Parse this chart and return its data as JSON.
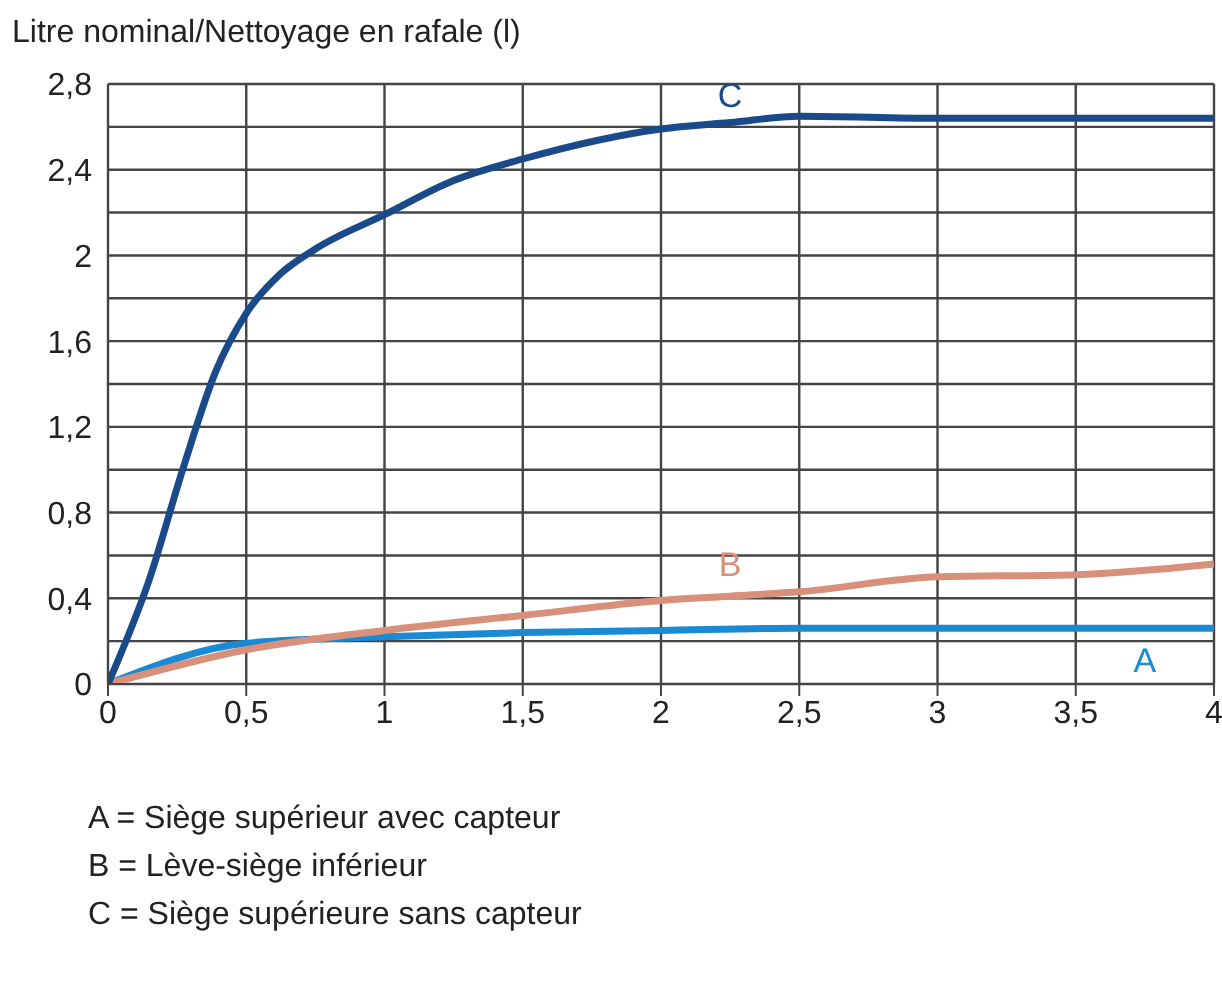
{
  "chart_data": {
    "type": "line",
    "ylabel": "Litre nominal/Nettoyage en rafale (l)",
    "xlim": [
      0,
      4
    ],
    "xticks": [
      0,
      {
        "value": 0.5,
        "label": "0,5"
      },
      1,
      {
        "value": 1.5,
        "label": "1,5"
      },
      2,
      {
        "value": 2.5,
        "label": "2,5"
      },
      3,
      {
        "value": 3.5,
        "label": "3,5"
      },
      4
    ],
    "ylim": [
      0,
      2.8
    ],
    "yticks": [
      0,
      {
        "value": 0.2,
        "label": null
      },
      {
        "value": 0.4,
        "label": "0,4"
      },
      {
        "value": 0.6,
        "label": null
      },
      {
        "value": 0.8,
        "label": "0,8"
      },
      {
        "value": 1,
        "label": null
      },
      {
        "value": 1.2,
        "label": "1,2"
      },
      {
        "value": 1.4,
        "label": null
      },
      {
        "value": 1.6,
        "label": "1,6"
      },
      {
        "value": 1.8,
        "label": null
      },
      2,
      {
        "value": 2.2,
        "label": null
      },
      {
        "value": 2.4,
        "label": "2,4"
      },
      {
        "value": 2.6,
        "label": null
      },
      {
        "value": 2.8,
        "label": "2,8"
      }
    ],
    "grid": true,
    "marker": "none",
    "line_style": "solid",
    "series": [
      {
        "name": "A",
        "color": "#1a8ad4",
        "x": [
          0,
          0.5,
          1,
          1.5,
          2,
          2.5,
          3,
          3.5,
          3.75,
          4
        ],
        "values": [
          0,
          0.19,
          0.22,
          0.24,
          0.25,
          0.26,
          0.26,
          0.26,
          0.26,
          0.26
        ]
      },
      {
        "name": "B",
        "color": "#d9907a",
        "x": [
          0,
          0.5,
          1,
          1.5,
          2,
          2.25,
          2.5,
          3,
          3.5,
          4
        ],
        "values": [
          0,
          0.16,
          0.25,
          0.32,
          0.39,
          0.41,
          0.43,
          0.5,
          0.51,
          0.56
        ]
      },
      {
        "name": "C",
        "color": "#1a4a8a",
        "x": [
          0,
          0.15,
          0.27,
          0.39,
          0.5,
          0.62,
          0.75,
          1,
          1.25,
          1.5,
          2,
          2.25,
          2.5,
          3,
          3.5,
          4
        ],
        "values": [
          0,
          0.49,
          1.0,
          1.46,
          1.73,
          1.91,
          2.03,
          2.19,
          2.35,
          2.45,
          2.59,
          2.62,
          2.65,
          2.64,
          2.64,
          2.64
        ]
      }
    ],
    "annotations": [
      "A = Siège supérieur avec capteur",
      "B = Lève-siège inférieur",
      "C = Siège supérieure sans capteur"
    ]
  }
}
